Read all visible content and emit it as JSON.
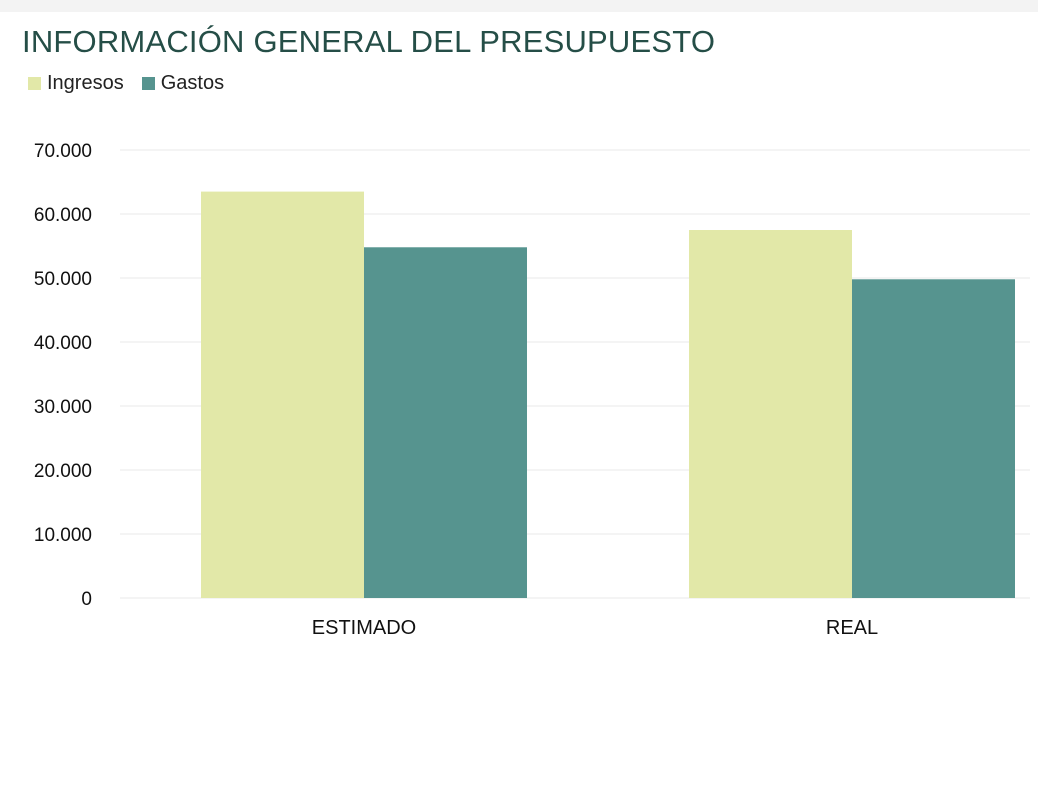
{
  "chart_data": {
    "type": "bar",
    "title": "INFORMACIÓN GENERAL DEL PRESUPUESTO",
    "categories": [
      "ESTIMADO",
      "REAL"
    ],
    "series": [
      {
        "name": "Ingresos",
        "values": [
          63500,
          57500
        ],
        "color": "#e2e8a8"
      },
      {
        "name": "Gastos",
        "values": [
          54800,
          49800
        ],
        "color": "#56948f"
      }
    ],
    "y_ticks": [
      "0",
      "10.000",
      "20.000",
      "30.000",
      "40.000",
      "50.000",
      "60.000",
      "70.000"
    ],
    "ylim": [
      0,
      70000
    ],
    "xlabel": "",
    "ylabel": "",
    "grid": true,
    "legend_position": "top-left"
  },
  "colors": {
    "title": "#254e47",
    "grid": "#f1f1f1"
  }
}
